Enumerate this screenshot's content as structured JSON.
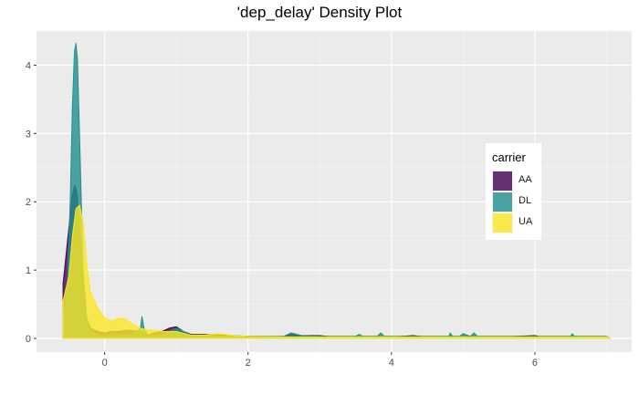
{
  "chart_data": {
    "type": "area",
    "title": "'dep_delay' Density Plot",
    "xlabel": "",
    "ylabel": "",
    "xlim": [
      -0.95,
      7.35
    ],
    "ylim": [
      -0.2,
      4.5
    ],
    "x_ticks": [
      0,
      2,
      4,
      6
    ],
    "y_ticks": [
      0,
      1,
      2,
      3,
      4
    ],
    "x_tick_labels": [
      "0",
      "2",
      "4",
      "6"
    ],
    "y_tick_labels": [
      "0",
      "1",
      "2",
      "3",
      "4"
    ],
    "grid": true,
    "legend": {
      "title": "carrier",
      "position": "right",
      "entries": [
        "AA",
        "DL",
        "UA"
      ]
    },
    "series": [
      {
        "name": "AA",
        "color": "#440154",
        "x": [
          -0.58,
          -0.5,
          -0.45,
          -0.42,
          -0.4,
          -0.38,
          -0.35,
          -0.3,
          -0.25,
          -0.2,
          -0.1,
          0.0,
          0.1,
          0.2,
          0.3,
          0.5,
          0.6,
          0.7,
          0.8,
          0.9,
          1.0,
          1.1,
          1.2,
          1.4,
          1.6,
          1.8,
          2.0,
          2.2,
          2.5,
          2.6,
          2.7,
          3.0,
          3.2,
          3.5,
          4.0,
          4.3,
          4.5,
          5.0,
          5.5,
          6.0,
          6.1,
          6.5,
          7.0,
          7.05
        ],
        "y": [
          0.8,
          1.6,
          2.1,
          2.24,
          2.2,
          2.05,
          1.6,
          0.8,
          0.3,
          0.15,
          0.1,
          0.08,
          0.1,
          0.1,
          0.12,
          0.1,
          0.05,
          0.08,
          0.1,
          0.15,
          0.17,
          0.1,
          0.06,
          0.06,
          0.05,
          0.04,
          0.03,
          0.03,
          0.02,
          0.07,
          0.04,
          0.04,
          0.02,
          0.02,
          0.02,
          0.04,
          0.02,
          0.02,
          0.02,
          0.04,
          0.02,
          0.02,
          0.02,
          0.0
        ]
      },
      {
        "name": "DL",
        "color": "#21908C",
        "x": [
          -0.58,
          -0.52,
          -0.48,
          -0.45,
          -0.42,
          -0.4,
          -0.38,
          -0.35,
          -0.32,
          -0.3,
          -0.25,
          -0.2,
          -0.1,
          0.0,
          0.2,
          0.4,
          0.5,
          0.52,
          0.55,
          0.6,
          0.8,
          1.0,
          1.2,
          1.4,
          1.6,
          2.0,
          2.5,
          2.6,
          2.75,
          3.0,
          3.5,
          3.55,
          3.6,
          3.8,
          3.85,
          3.9,
          4.5,
          4.8,
          4.82,
          4.85,
          4.95,
          5.0,
          5.1,
          5.15,
          5.2,
          5.5,
          6.5,
          6.52,
          6.55,
          7.0,
          7.05
        ],
        "y": [
          0.2,
          0.8,
          2.0,
          3.4,
          4.2,
          4.32,
          4.1,
          3.0,
          1.8,
          1.0,
          0.3,
          0.1,
          0.05,
          0.03,
          0.05,
          0.05,
          0.15,
          0.32,
          0.15,
          0.05,
          0.05,
          0.15,
          0.05,
          0.05,
          0.03,
          0.03,
          0.03,
          0.08,
          0.04,
          0.03,
          0.03,
          0.06,
          0.03,
          0.03,
          0.08,
          0.03,
          0.03,
          0.03,
          0.08,
          0.03,
          0.03,
          0.07,
          0.03,
          0.08,
          0.03,
          0.03,
          0.03,
          0.07,
          0.03,
          0.03,
          0.0
        ]
      },
      {
        "name": "UA",
        "color": "#FDE725",
        "x": [
          -0.58,
          -0.5,
          -0.45,
          -0.4,
          -0.35,
          -0.3,
          -0.25,
          -0.2,
          -0.1,
          0.0,
          0.1,
          0.2,
          0.3,
          0.4,
          0.5,
          0.6,
          0.7,
          0.8,
          1.0,
          1.2,
          1.4,
          1.6,
          1.8,
          2.0,
          2.5,
          3.0,
          3.5,
          4.0,
          5.0,
          6.0,
          7.0,
          7.05
        ],
        "y": [
          0.55,
          0.9,
          1.5,
          1.9,
          1.95,
          1.7,
          1.1,
          0.7,
          0.45,
          0.3,
          0.25,
          0.3,
          0.28,
          0.2,
          0.15,
          0.12,
          0.12,
          0.1,
          0.1,
          0.05,
          0.05,
          0.07,
          0.04,
          0.03,
          0.02,
          0.02,
          0.02,
          0.02,
          0.02,
          0.02,
          0.02,
          0.0
        ]
      }
    ]
  }
}
